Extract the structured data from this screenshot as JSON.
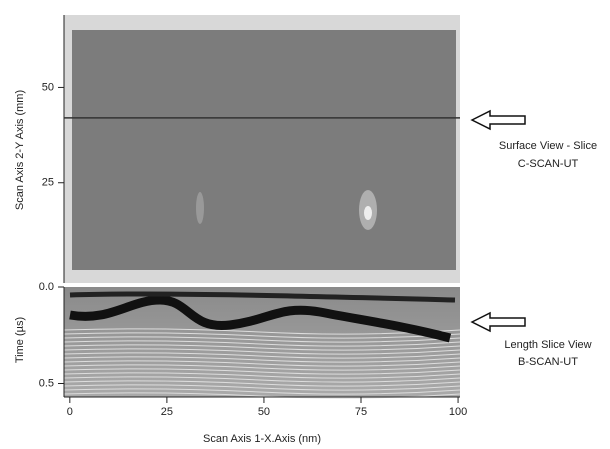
{
  "chart_data": [
    {
      "type": "image",
      "ylabel": "Scan Axis 2-Y Axis (mm)",
      "ylim": [
        -1.3,
        69
      ],
      "yticks": [
        25,
        50
      ],
      "slice_y": 42,
      "annotation": "Surface View - Slice",
      "annotation_sub": "C-SCAN-UT"
    },
    {
      "type": "image",
      "ylabel": "Time (µs)",
      "ylim": [
        0,
        0.57
      ],
      "y_inverted": true,
      "yticks": [
        {
          "value": 0,
          "label": "0.0"
        },
        0.5
      ],
      "xlabel": "Scan Axis 1-X.Axis (nm)",
      "xlim": [
        -1.5,
        100.5
      ],
      "xticks": [
        0,
        25,
        50,
        75,
        100
      ],
      "annotation": "Length Slice View",
      "annotation_sub": "B-SCAN-UT"
    }
  ]
}
